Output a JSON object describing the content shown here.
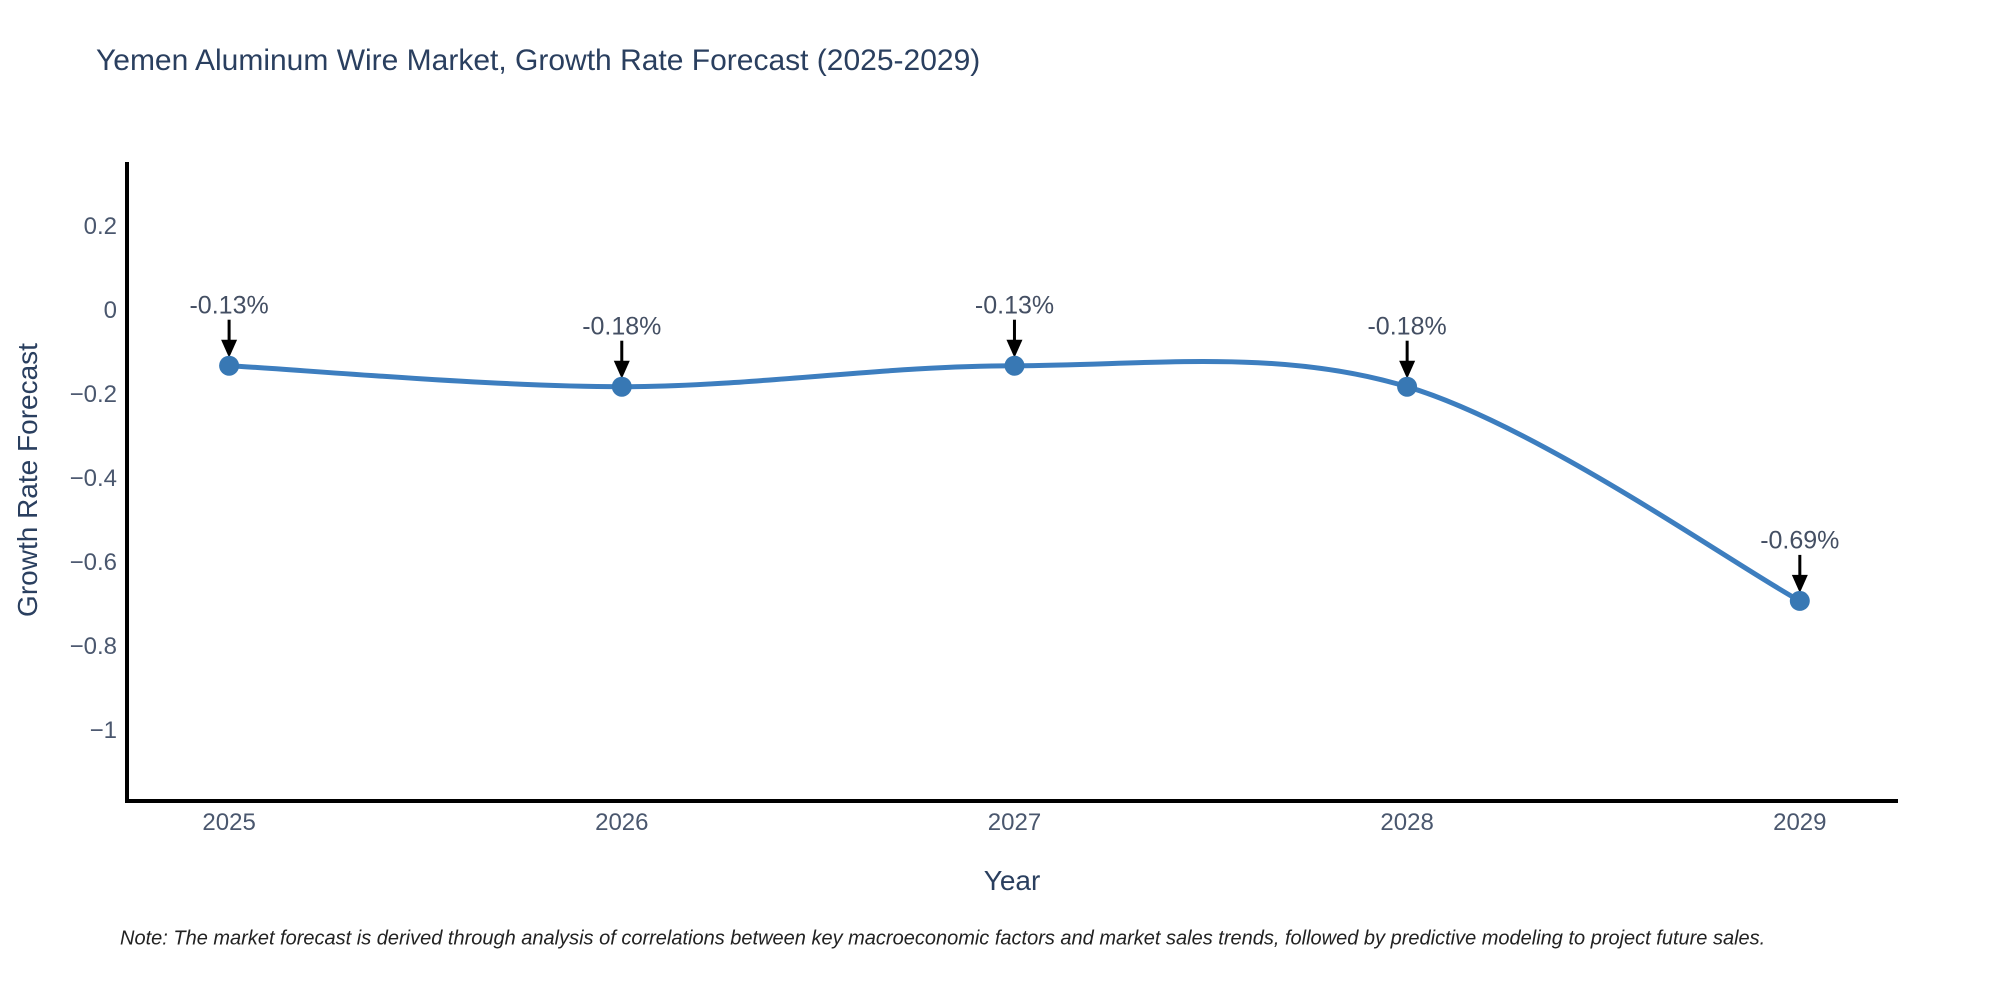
{
  "chart_data": {
    "type": "line",
    "title": "Yemen Aluminum Wire Market, Growth Rate Forecast (2025-2029)",
    "xlabel": "Year",
    "ylabel": "Growth Rate Forecast",
    "x": [
      2025,
      2026,
      2027,
      2028,
      2029
    ],
    "values": [
      -0.13,
      -0.18,
      -0.13,
      -0.18,
      -0.69
    ],
    "annotations": [
      "-0.13%",
      "-0.18%",
      "-0.13%",
      "-0.18%",
      "-0.69%"
    ],
    "x_tick_labels": [
      "2025",
      "2026",
      "2027",
      "2028",
      "2029"
    ],
    "y_ticks": [
      {
        "value": 0.2,
        "label": "0.2"
      },
      {
        "value": 0,
        "label": "0"
      },
      {
        "value": -0.2,
        "label": "−0.2"
      },
      {
        "value": -0.4,
        "label": "−0.4"
      },
      {
        "value": -0.6,
        "label": "−0.6"
      },
      {
        "value": -0.8,
        "label": "−0.8"
      },
      {
        "value": -1,
        "label": "−1"
      }
    ],
    "xlim": [
      2024.74,
      2029.25
    ],
    "ylim": [
      -1.164,
      0.355
    ],
    "grid": false,
    "line_shape": "spline",
    "note": "Note: The market forecast is derived through analysis of correlations between key macroeconomic factors and market sales trends, followed by predictive modeling to project future sales."
  },
  "colors": {
    "background": "#ffffff",
    "line": "#3d7ebf",
    "marker": "#3878b4",
    "arrow": "#000000",
    "axis": "#000000",
    "title": "#2a3f5f",
    "tick": "#4a576e",
    "annotation": "#444f63",
    "note": "#222222"
  }
}
